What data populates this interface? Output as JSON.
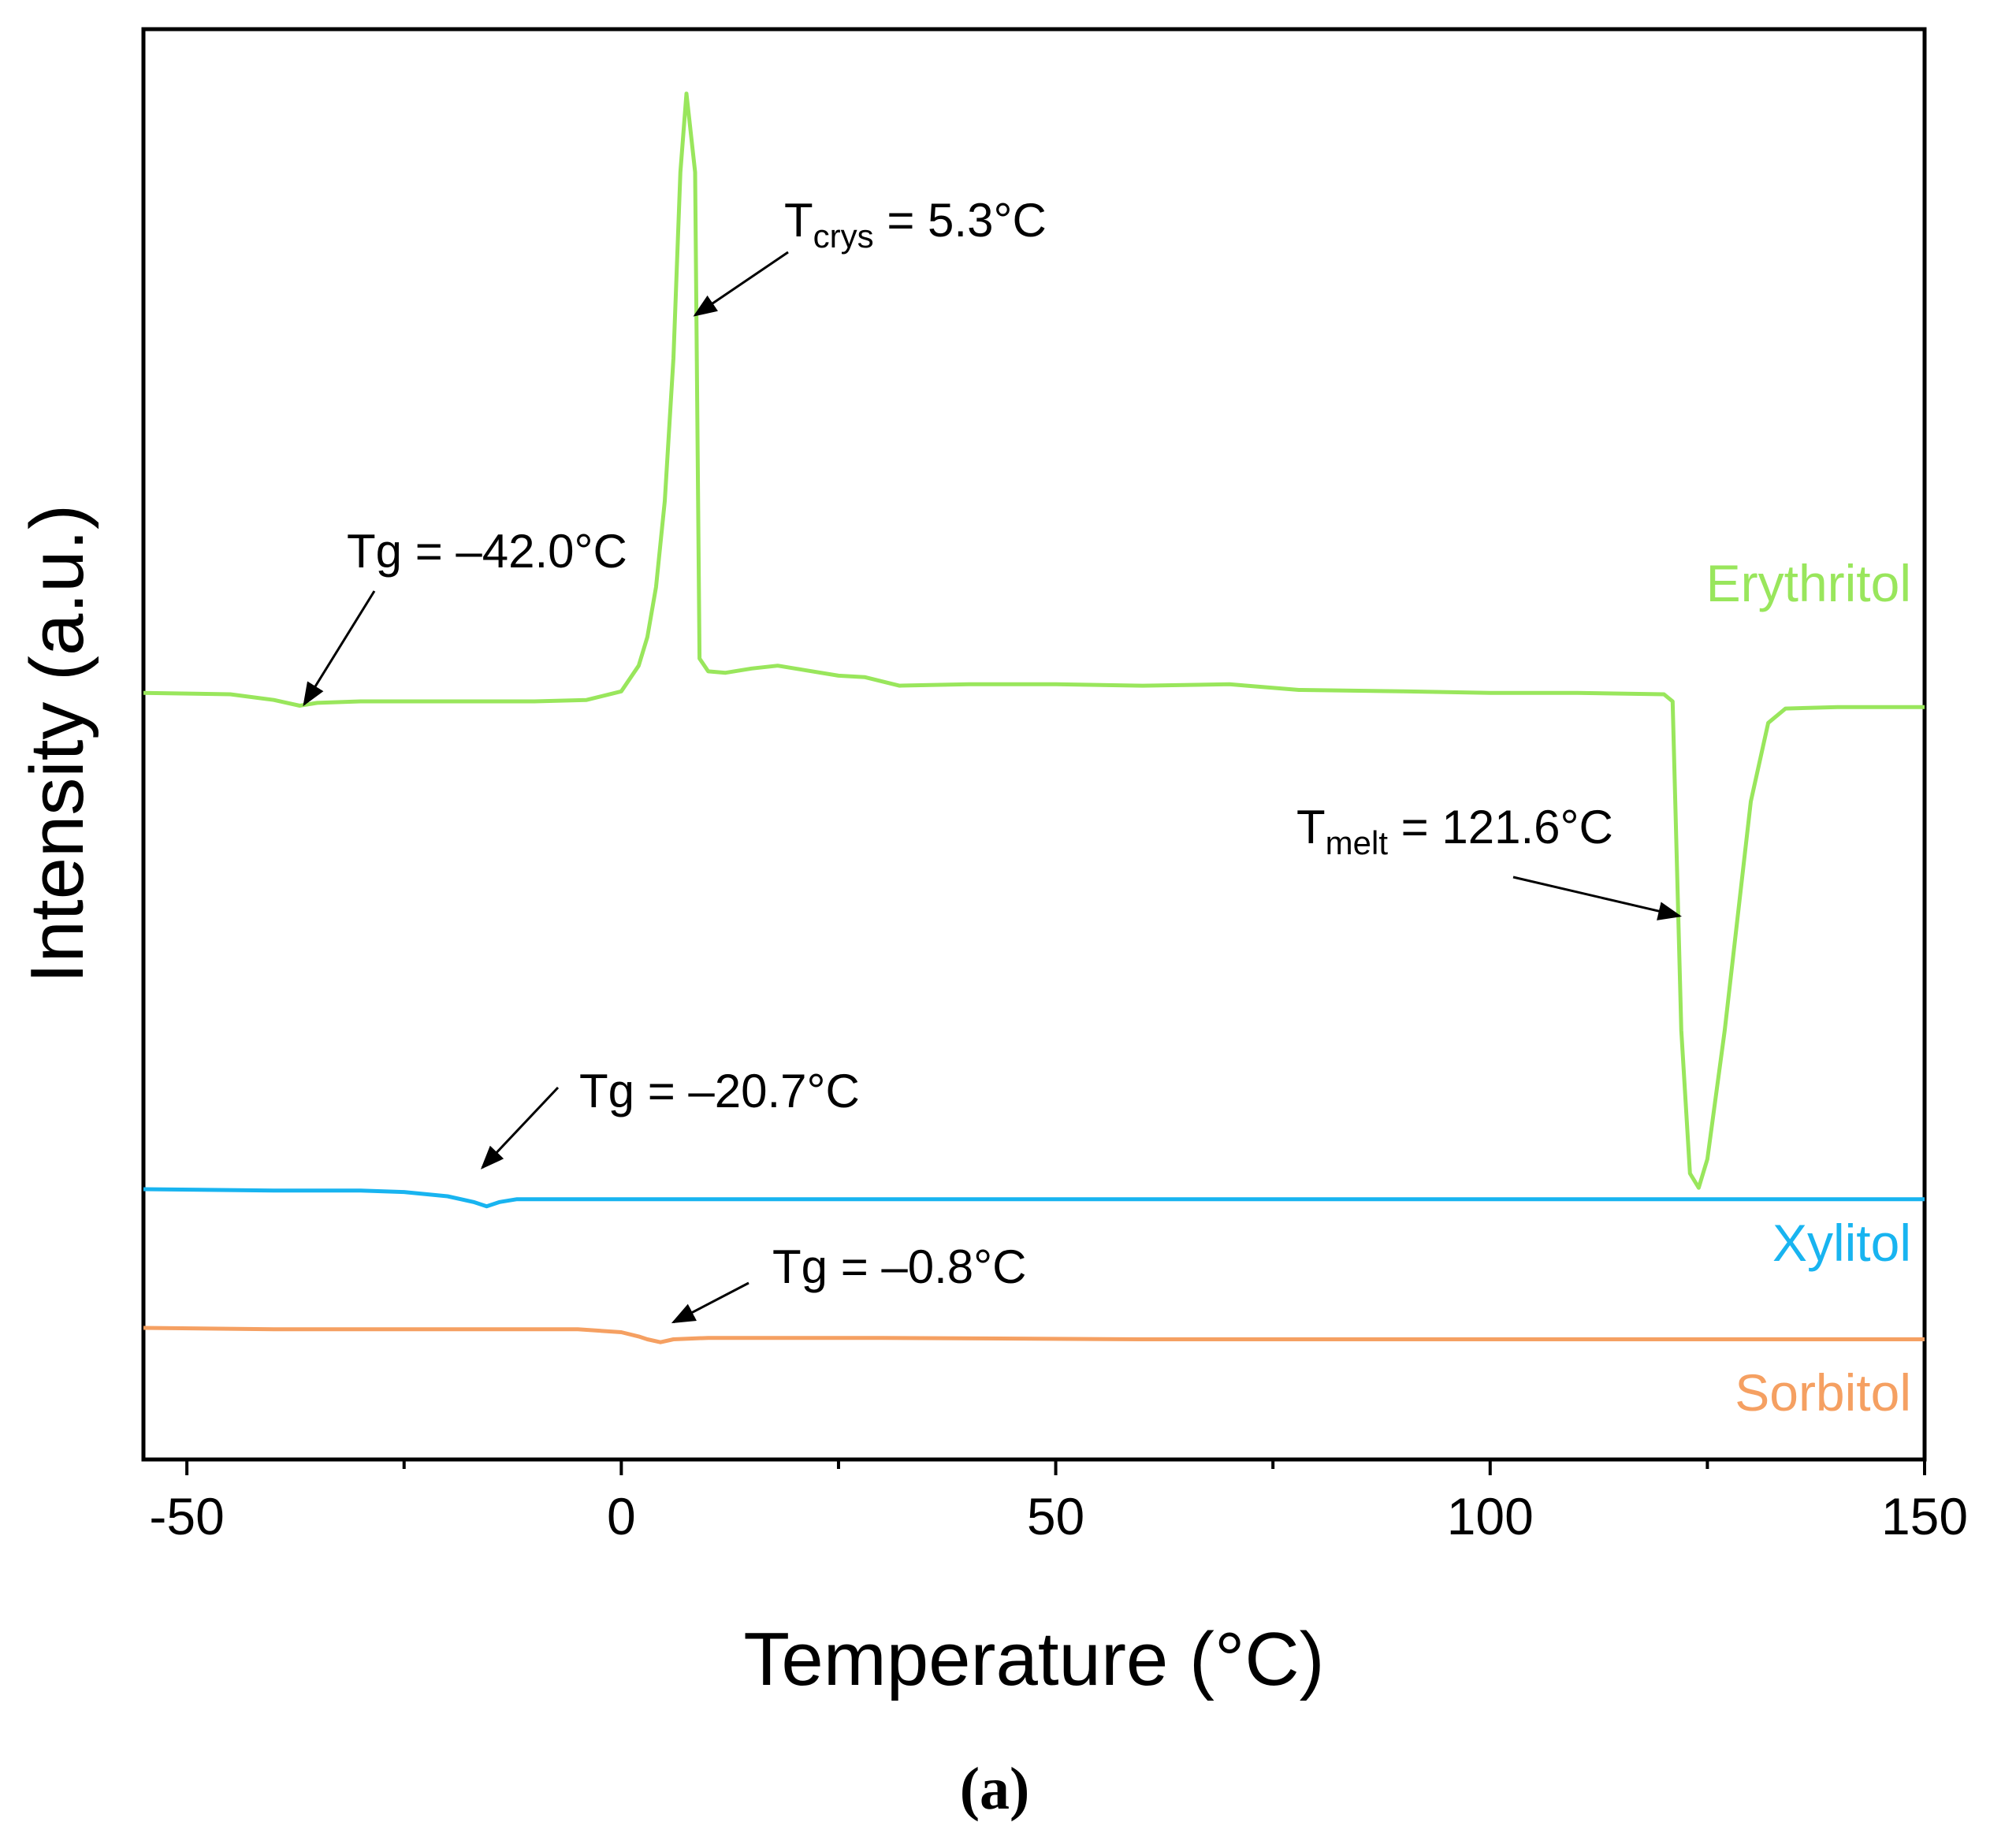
{
  "chart_data": {
    "type": "line",
    "xlabel": "Temperature (°C)",
    "ylabel": "Intensity (a.u.)",
    "xlim": [
      -55,
      150
    ],
    "ylim": [
      0,
      100
    ],
    "x_ticks": [
      -50,
      0,
      50,
      100,
      150
    ],
    "x_tick_labels": [
      "-50",
      "0",
      "50",
      "100",
      "150"
    ],
    "x_minor_ticks": [
      -25,
      25,
      75,
      125
    ],
    "grid": false,
    "panel_label": "(a)",
    "series": [
      {
        "name": "Erythritol",
        "color": "#99e65c",
        "points": [
          [
            -55,
            53.6
          ],
          [
            -45,
            53.5
          ],
          [
            -40,
            53.1
          ],
          [
            -37,
            52.7
          ],
          [
            -35,
            52.9
          ],
          [
            -30,
            53.0
          ],
          [
            -20,
            53.0
          ],
          [
            -10,
            53.0
          ],
          [
            -4,
            53.1
          ],
          [
            0,
            53.7
          ],
          [
            2,
            55.5
          ],
          [
            3,
            57.5
          ],
          [
            4,
            61.0
          ],
          [
            5,
            67.0
          ],
          [
            6,
            77.0
          ],
          [
            6.8,
            90.0
          ],
          [
            7.5,
            95.5
          ],
          [
            8.5,
            90.0
          ],
          [
            9.0,
            56.0
          ],
          [
            10,
            55.1
          ],
          [
            12,
            55.0
          ],
          [
            15,
            55.3
          ],
          [
            18,
            55.5
          ],
          [
            20,
            55.3
          ],
          [
            25,
            54.8
          ],
          [
            28,
            54.7
          ],
          [
            32,
            54.1
          ],
          [
            40,
            54.2
          ],
          [
            50,
            54.2
          ],
          [
            60,
            54.1
          ],
          [
            70,
            54.2
          ],
          [
            72,
            54.1
          ],
          [
            78,
            53.8
          ],
          [
            90,
            53.7
          ],
          [
            100,
            53.6
          ],
          [
            110,
            53.6
          ],
          [
            120,
            53.5
          ],
          [
            121,
            53.0
          ],
          [
            122,
            30.0
          ],
          [
            123,
            20.0
          ],
          [
            124,
            19.0
          ],
          [
            125,
            21.0
          ],
          [
            127,
            30.0
          ],
          [
            130,
            46.0
          ],
          [
            132,
            51.5
          ],
          [
            134,
            52.5
          ],
          [
            140,
            52.6
          ],
          [
            150,
            52.6
          ]
        ]
      },
      {
        "name": "Xylitol",
        "color": "#18b4f0",
        "points": [
          [
            -55,
            18.9
          ],
          [
            -40,
            18.8
          ],
          [
            -30,
            18.8
          ],
          [
            -25,
            18.7
          ],
          [
            -20,
            18.4
          ],
          [
            -17,
            18.0
          ],
          [
            -15.5,
            17.7
          ],
          [
            -14,
            18.0
          ],
          [
            -12,
            18.2
          ],
          [
            -5,
            18.2
          ],
          [
            0,
            18.2
          ],
          [
            50,
            18.2
          ],
          [
            100,
            18.2
          ],
          [
            150,
            18.2
          ]
        ]
      },
      {
        "name": "Sorbitol",
        "color": "#f5a062",
        "points": [
          [
            -55,
            9.2
          ],
          [
            -40,
            9.1
          ],
          [
            -20,
            9.1
          ],
          [
            -5,
            9.1
          ],
          [
            0,
            8.9
          ],
          [
            2,
            8.6
          ],
          [
            3,
            8.4
          ],
          [
            4.5,
            8.2
          ],
          [
            6,
            8.4
          ],
          [
            10,
            8.5
          ],
          [
            30,
            8.5
          ],
          [
            60,
            8.4
          ],
          [
            100,
            8.4
          ],
          [
            150,
            8.4
          ]
        ]
      }
    ],
    "annotations": [
      {
        "id": "tg_ery",
        "text": "Tg = –42.0°C",
        "points_to": [
          -36.5,
          52.8
        ]
      },
      {
        "id": "tcrys",
        "base": "T",
        "sub": "crys",
        "rest": " = 5.3°C",
        "points_to": [
          8.5,
          80.0
        ]
      },
      {
        "id": "tmelt",
        "base": "T",
        "sub": "melt",
        "rest": " = 121.6°C",
        "points_to": [
          121.8,
          38.0
        ]
      },
      {
        "id": "tg_xyl",
        "text": "Tg = –20.7°C",
        "points_to": [
          -16,
          20.4
        ]
      },
      {
        "id": "tg_sor",
        "text": "Tg = –0.8°C",
        "points_to": [
          6,
          9.6
        ]
      }
    ]
  }
}
